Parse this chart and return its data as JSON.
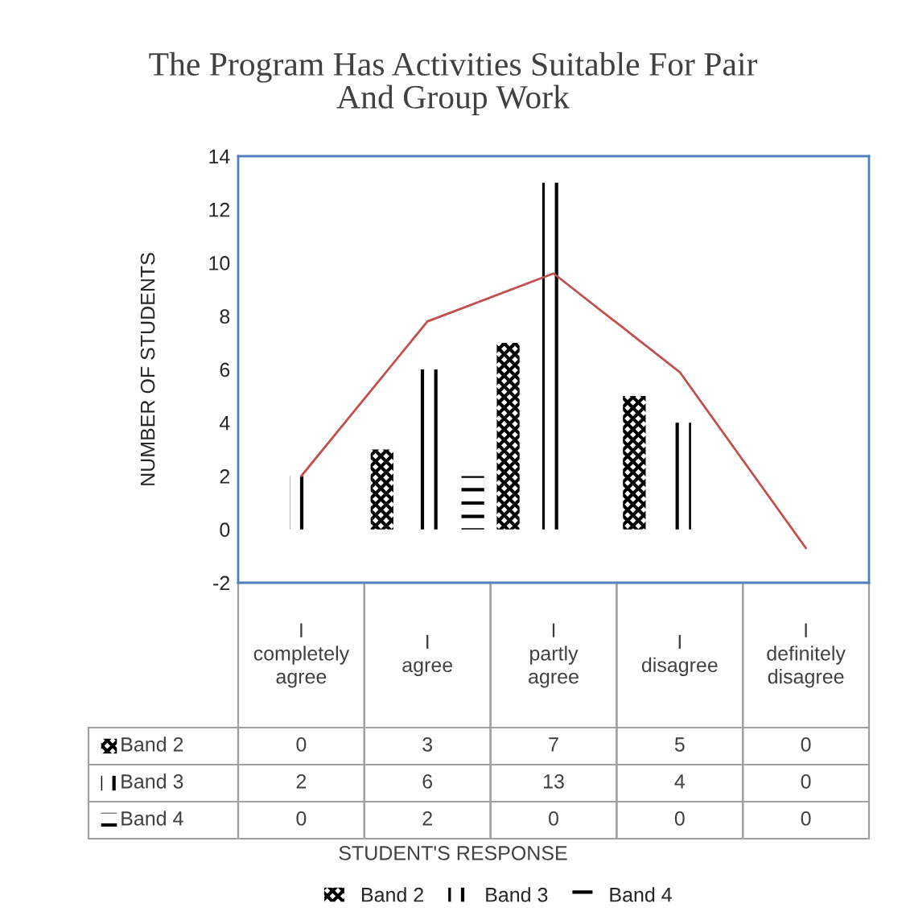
{
  "chart_data": {
    "type": "bar",
    "title": "The Program Has Activities Suitable For Pair And Group Work",
    "annotations": [
      "STUDENT'S RESPONSE"
    ],
    "ylabel": "NUMBER OF STUDENTS",
    "categories": [
      "I completely agree",
      "I agree",
      "I partly agree",
      "I disagree",
      "I definitely disagree"
    ],
    "series": [
      {
        "name": "Band 2",
        "color": "#000000",
        "values": [
          0,
          3,
          7,
          5,
          0
        ],
        "value_labels": [
          "0",
          "3",
          "7",
          "5",
          "0"
        ]
      },
      {
        "name": "Band 3",
        "color": "#000000",
        "values": [
          2,
          6,
          13,
          4,
          0
        ],
        "value_labels": [
          "2",
          "6",
          "13",
          "4",
          "0"
        ]
      },
      {
        "name": "Band 4",
        "color": "#000000",
        "values": [
          0,
          2,
          0,
          0,
          0
        ],
        "value_labels": [
          "0",
          "2",
          "0",
          "0",
          "0"
        ]
      },
      {
        "type": "line",
        "color": "#c0504d",
        "values": [
          2,
          7.8,
          9.6,
          5.9,
          -0.7
        ]
      }
    ],
    "ylim": [
      -2,
      14
    ],
    "yticks": [
      -2,
      0,
      2,
      4,
      6,
      8,
      10,
      12,
      14
    ],
    "legend": "bottom",
    "grid": false
  }
}
